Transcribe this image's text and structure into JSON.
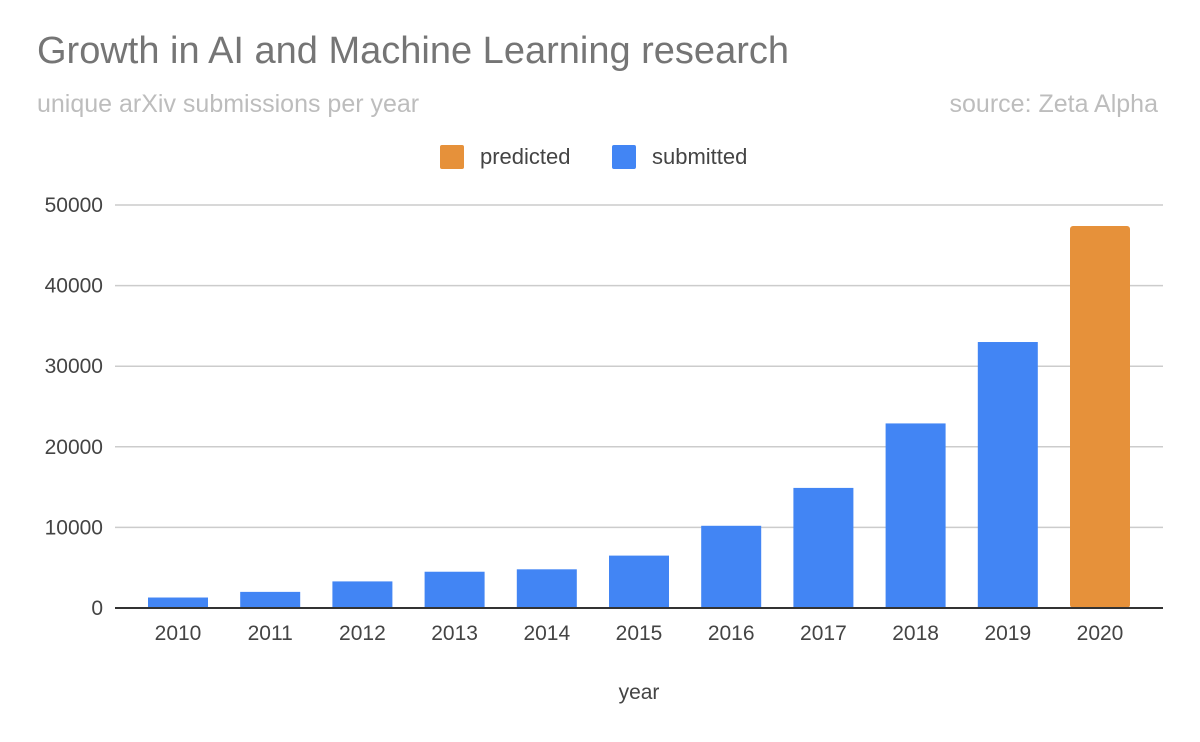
{
  "chart_data": {
    "type": "bar",
    "title": "Growth in AI and Machine Learning research",
    "subtitle": "unique arXiv submissions per year",
    "source": "source: Zeta Alpha",
    "xlabel": "year",
    "ylabel": "",
    "ylim": [
      0,
      50000
    ],
    "yticks": [
      "0",
      "10000",
      "20000",
      "30000",
      "40000",
      "50000"
    ],
    "grid": true,
    "legend_position": "top",
    "categories": [
      "2010",
      "2011",
      "2012",
      "2013",
      "2014",
      "2015",
      "2016",
      "2017",
      "2018",
      "2019",
      "2020"
    ],
    "series": [
      {
        "name": "predicted",
        "color": "#e6913a",
        "values": [
          null,
          null,
          null,
          null,
          null,
          null,
          null,
          null,
          null,
          null,
          47400
        ]
      },
      {
        "name": "submitted",
        "color": "#4285f4",
        "values": [
          1300,
          2000,
          3300,
          4500,
          4800,
          6500,
          10200,
          14900,
          22900,
          33000,
          null
        ]
      }
    ]
  }
}
